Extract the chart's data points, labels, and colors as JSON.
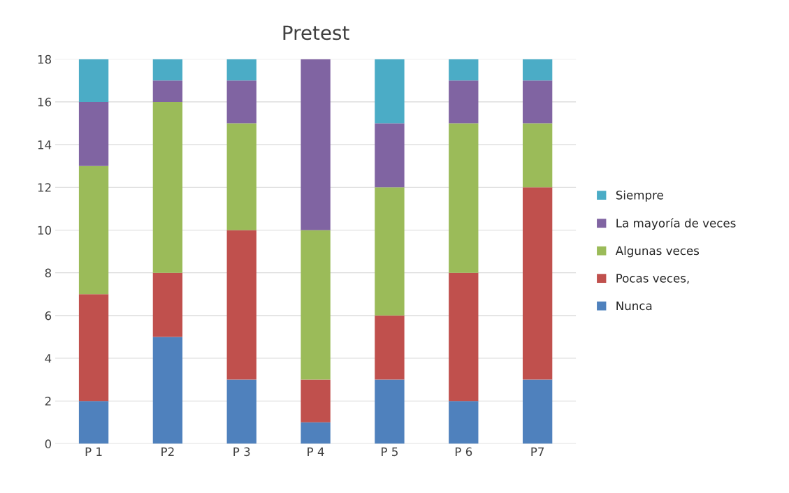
{
  "chart_data": {
    "type": "bar",
    "title": "Pretest",
    "stacked": true,
    "categories": [
      "P 1",
      "P2",
      "P 3",
      "P 4",
      "P 5",
      "P 6",
      "P7"
    ],
    "series": [
      {
        "name": "Nunca",
        "color": "#4f81bd",
        "values": [
          2,
          5,
          3,
          1,
          3,
          2,
          3
        ]
      },
      {
        "name": "Pocas veces,",
        "color": "#c0504d",
        "values": [
          5,
          3,
          7,
          2,
          3,
          6,
          9
        ]
      },
      {
        "name": "Algunas veces",
        "color": "#9bbb59",
        "values": [
          6,
          8,
          5,
          7,
          6,
          7,
          3
        ]
      },
      {
        "name": "La mayoría de veces",
        "color": "#8064a2",
        "values": [
          3,
          1,
          2,
          8,
          3,
          2,
          2
        ]
      },
      {
        "name": "Siempre",
        "color": "#4bacc6",
        "values": [
          2,
          1,
          1,
          0,
          3,
          1,
          1
        ]
      }
    ],
    "ylim": [
      0,
      18
    ],
    "yticks": [
      0,
      2,
      4,
      6,
      8,
      10,
      12,
      14,
      16,
      18
    ],
    "grid": "y",
    "legend": "right"
  }
}
